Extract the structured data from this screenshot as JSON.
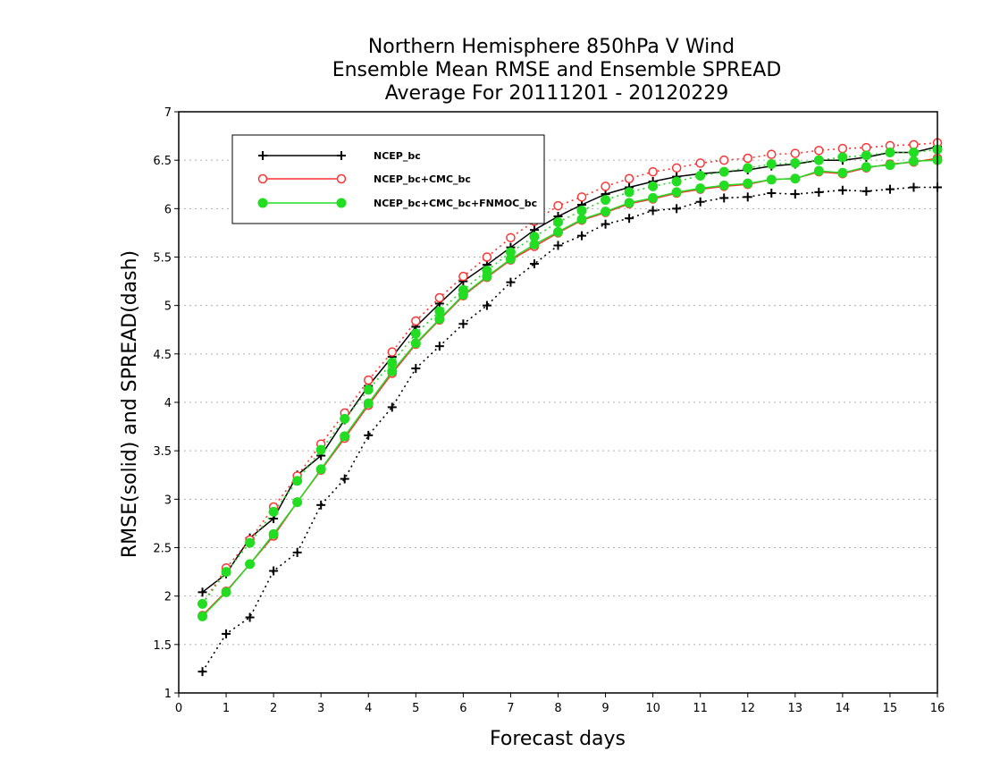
{
  "chart_data": {
    "type": "line",
    "title": [
      "Northern Hemisphere 850hPa V Wind",
      "Ensemble Mean RMSE and Ensemble SPREAD",
      "Average For 20111201 - 20120229"
    ],
    "xlabel": "Forecast days",
    "ylabel": "RMSE(solid) and SPREAD(dash)",
    "xlim": [
      0,
      16
    ],
    "ylim": [
      1,
      7
    ],
    "xticks": [
      "0",
      "1",
      "2",
      "3",
      "4",
      "5",
      "6",
      "7",
      "8",
      "9",
      "10",
      "11",
      "12",
      "13",
      "14",
      "15",
      "16"
    ],
    "yticks": [
      "1",
      "1.5",
      "2",
      "2.5",
      "3",
      "3.5",
      "4",
      "4.5",
      "5",
      "5.5",
      "6",
      "6.5",
      "7"
    ],
    "grid": "horizontal dotted",
    "legend_position": "top-left",
    "x": [
      0.5,
      1,
      1.5,
      2,
      2.5,
      3,
      3.5,
      4,
      4.5,
      5,
      5.5,
      6,
      6.5,
      7,
      7.5,
      8,
      8.5,
      9,
      9.5,
      10,
      10.5,
      11,
      11.5,
      12,
      12.5,
      13,
      13.5,
      14,
      14.5,
      15,
      15.5,
      16
    ],
    "series": [
      {
        "name": "NCEP_bc",
        "color": "#000000",
        "marker": "plus",
        "rmse": [
          2.04,
          2.23,
          2.6,
          2.8,
          3.25,
          3.45,
          3.82,
          4.17,
          4.47,
          4.78,
          5.02,
          5.25,
          5.42,
          5.6,
          5.78,
          5.92,
          6.04,
          6.15,
          6.22,
          6.28,
          6.33,
          6.36,
          6.38,
          6.4,
          6.44,
          6.46,
          6.5,
          6.5,
          6.53,
          6.58,
          6.58,
          6.64
        ],
        "spread": [
          1.22,
          1.61,
          1.78,
          2.26,
          2.45,
          2.94,
          3.21,
          3.66,
          3.95,
          4.35,
          4.58,
          4.81,
          5.0,
          5.24,
          5.43,
          5.62,
          5.72,
          5.84,
          5.9,
          5.98,
          6.0,
          6.07,
          6.11,
          6.12,
          6.16,
          6.15,
          6.17,
          6.19,
          6.18,
          6.2,
          6.22,
          6.22
        ]
      },
      {
        "name": "NCEP_bc+CMC_bc",
        "color": "#ff3333",
        "marker": "open-circle",
        "rmse": [
          1.8,
          2.05,
          2.33,
          2.62,
          2.97,
          3.3,
          3.63,
          3.97,
          4.3,
          4.6,
          4.85,
          5.1,
          5.29,
          5.47,
          5.61,
          5.75,
          5.88,
          5.96,
          6.05,
          6.1,
          6.16,
          6.2,
          6.23,
          6.25,
          6.3,
          6.31,
          6.38,
          6.36,
          6.42,
          6.46,
          6.48,
          6.52
        ],
        "spread": [
          1.92,
          2.29,
          2.58,
          2.92,
          3.24,
          3.57,
          3.89,
          4.23,
          4.52,
          4.84,
          5.08,
          5.3,
          5.5,
          5.7,
          5.87,
          6.03,
          6.12,
          6.23,
          6.31,
          6.38,
          6.42,
          6.47,
          6.5,
          6.52,
          6.56,
          6.57,
          6.6,
          6.62,
          6.63,
          6.65,
          6.66,
          6.68
        ]
      },
      {
        "name": "NCEP_bc+CMC_bc+FNMOC_bc",
        "color": "#22dd22",
        "marker": "filled-circle",
        "rmse": [
          1.79,
          2.04,
          2.33,
          2.64,
          2.97,
          3.31,
          3.65,
          3.99,
          4.32,
          4.61,
          4.86,
          5.11,
          5.3,
          5.48,
          5.63,
          5.76,
          5.89,
          5.97,
          6.06,
          6.11,
          6.17,
          6.21,
          6.24,
          6.26,
          6.3,
          6.31,
          6.39,
          6.37,
          6.43,
          6.45,
          6.49,
          6.5
        ],
        "spread": [
          1.92,
          2.25,
          2.55,
          2.87,
          3.19,
          3.51,
          3.83,
          4.13,
          4.41,
          4.71,
          4.94,
          5.16,
          5.36,
          5.55,
          5.71,
          5.86,
          5.98,
          6.09,
          6.17,
          6.23,
          6.28,
          6.34,
          6.38,
          6.42,
          6.46,
          6.47,
          6.5,
          6.53,
          6.55,
          6.58,
          6.58,
          6.61
        ]
      }
    ]
  }
}
